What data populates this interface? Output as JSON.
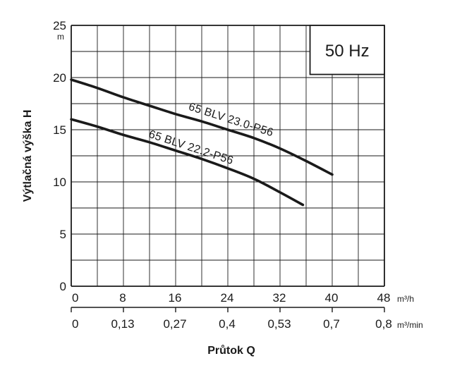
{
  "chart_data": {
    "type": "line",
    "badge": "50 Hz",
    "ylabel": "Výtlačná výška H",
    "yunit": "m",
    "xlabel": "Průtok Q",
    "ylim": [
      0,
      25
    ],
    "xlim": [
      0,
      48
    ],
    "grid": true,
    "y_ticks": [
      "0",
      "5",
      "10",
      "15",
      "20",
      "25"
    ],
    "x_ticks": [
      "0",
      "8",
      "16",
      "24",
      "32",
      "40",
      "48"
    ],
    "x_unit": "m³/h",
    "x2_ticks": [
      "0",
      "0,13",
      "0,27",
      "0,4",
      "0,53",
      "0,7",
      "0,8"
    ],
    "x2_unit": "m³/min",
    "series": [
      {
        "name": "65 BLV 23.0-P56",
        "x": [
          0,
          4,
          8,
          12,
          16,
          20,
          24,
          28,
          32,
          36,
          40
        ],
        "y": [
          19.8,
          19.0,
          18.1,
          17.3,
          16.5,
          15.8,
          15.0,
          14.2,
          13.2,
          12.0,
          10.7
        ]
      },
      {
        "name": "65 BLV 22.2-P56",
        "x": [
          0,
          4,
          8,
          12,
          16,
          20,
          24,
          28,
          32,
          35.5
        ],
        "y": [
          16.0,
          15.3,
          14.5,
          13.8,
          13.0,
          12.2,
          11.3,
          10.3,
          9.0,
          7.8
        ]
      }
    ]
  }
}
